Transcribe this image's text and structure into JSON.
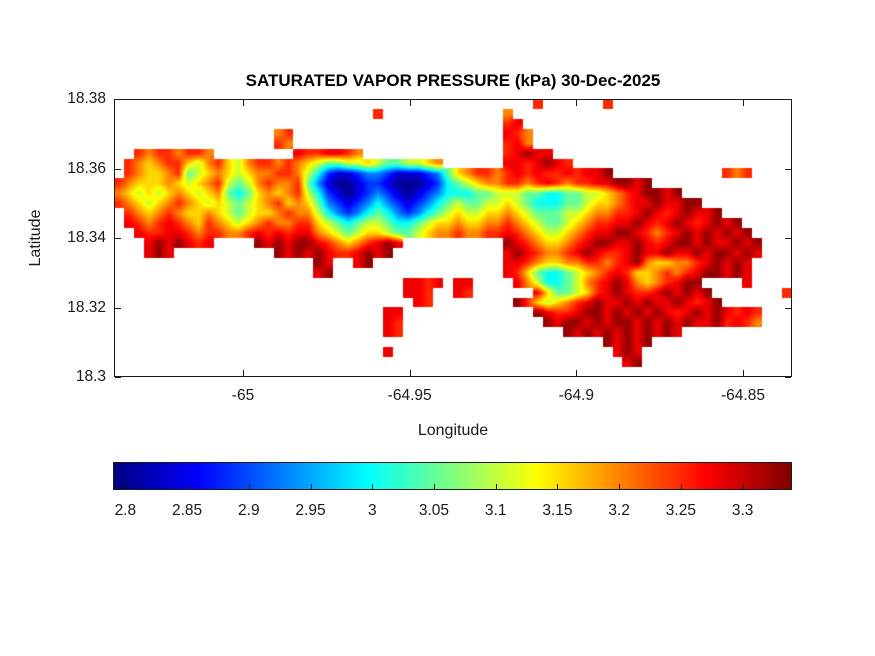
{
  "figure": {
    "title": "SATURATED VAPOR PRESSURE (kPa) 30-Dec-2025",
    "xlabel": "Longitude",
    "ylabel": "Latitude",
    "background": "#ffffff",
    "axis_color": "#1a1a1a"
  },
  "chart_data": {
    "type": "heatmap",
    "title": "SATURATED VAPOR PRESSURE (kPa) 30-Dec-2025",
    "xlabel": "Longitude",
    "ylabel": "Latitude",
    "units": "kPa",
    "xlim": [
      -65.0387,
      -64.8353
    ],
    "ylim": [
      18.3,
      18.38
    ],
    "xticks": [
      -65,
      -64.95,
      -64.9,
      -64.85
    ],
    "yticks": [
      18.38,
      18.36,
      18.34,
      18.32,
      18.3
    ],
    "grid_on": false,
    "colormap": "jet",
    "color_limits": [
      2.79,
      3.34
    ],
    "colorbar_orientation": "horizontal",
    "colorbar_ticks": [
      2.8,
      2.85,
      2.9,
      2.95,
      3,
      3.05,
      3.1,
      3.15,
      3.2,
      3.25,
      3.3
    ],
    "grid": {
      "cols": 68,
      "rows": 28,
      "sea_char": ".",
      "value_levels": {
        "a": 2.8,
        "b": 2.84,
        "c": 2.885,
        "d": 2.93,
        "e": 3.0,
        "f": 3.05,
        "g": 3.105,
        "h": 3.155,
        "i": 3.2,
        "j": 3.25,
        "k": 3.28,
        "l": 3.33
      },
      "cells": [
        "..........................................j......j..................",
        "..........................j............i...........................",
        ".......................................jk...........................",
        "................ij.....................kji..........................",
        "................ji.....................jki..........................",
        "..jijjijji........kjjkkji..............jklkk........................",
        ".jihijjhgijhgijjijihgffgghgffgghi......kkjklkj......................",
        ".jihhijfghihghiijjigecbbcddcbbbcdfhijjijkjkjjkjkkl...........jij....",
        "jihhhihghijgfgijiijfdbaabccbaaabcefghiijjijkjijjkkllkl..............",
        "ihghghihghifefhihijgecbabcdcbabcdeeeffgggffeeffgghijkllkl...........",
        "jihghijihghgfghijhihfdcbcdedcbcdefgffgghgfeeeffghhijkklkkll.........",
        ".jihijihhihgfghhijiigedcdefedcdefghgghhihgfffgghiijjklkjklkkl.......",
        ".kjijkjihjihghijiijjhgfefggfeefghhihhiijihgffghijjkklkjklkjklkl.....",
        "..kjjkkjijjiijkjkjkkihgfghhgffghiijiijjkjihgghijkkllkjijklklklkl....",
        "...klklkjk....lklkllkjihijklk..........lkjihhijkllkklkjkllklkklkl...",
        "...klk..........lklklkjjklkl...........klkjiijklkjjklkklkklkllklk...",
        "....................lk..kl.............kkjihhiijjijklihhiijklklk....",
        "....................kl.................kjhfeefghijkjhhijijkllklk....",
        ".............................kkjk.kk....kigeefgijklkihijkll....k...",
        ".............................kkj..kj......khffghjklkjjklklkl.......j",
        "..............................kj........ljhghijklkklklkklkjkl......",
        "...........................kk.............lkjjkllklklklkjklklkjkj..",
        "...........................kj..............lkllklkllklklklkkljkji..",
        "...........................kj................lklklklklklk..........",
        ".................................................lklkl.............",
        "...........................k......................klk..............",
        "...................................................kl..............",
        "...................................................................."
      ]
    }
  }
}
